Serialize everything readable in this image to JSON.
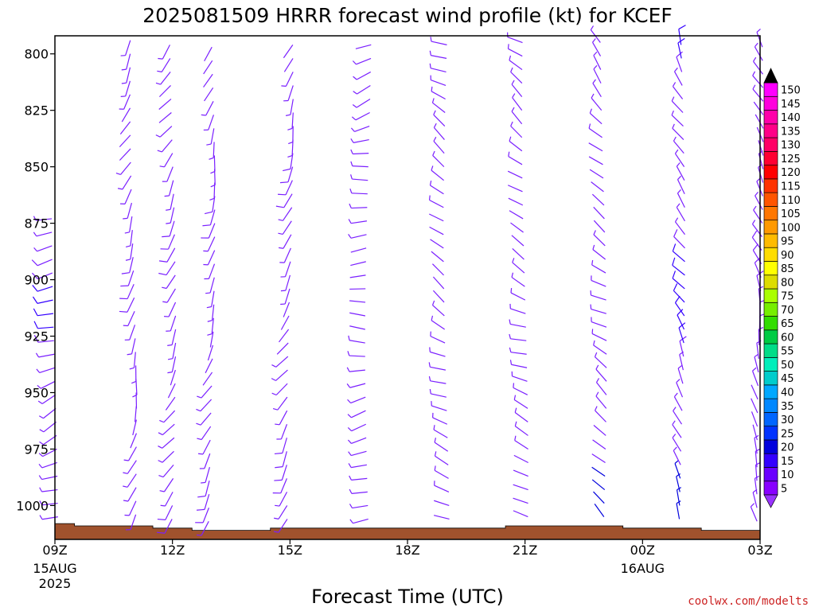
{
  "chart_data": {
    "type": "wind-barb-profile",
    "title": "2025081509 HRRR forecast wind profile (kt) for KCEF",
    "xlabel": "Forecast Time (UTC)",
    "credit": "coolwx.com/modelts",
    "y_axis": {
      "quantity": "pressure (hPa)",
      "range": [
        1015,
        792
      ],
      "ticks": [
        800,
        825,
        850,
        875,
        900,
        925,
        950,
        975,
        1000
      ]
    },
    "x_axis": {
      "start": "2025-08-15 09Z",
      "end": "2025-08-16 03Z",
      "range_hours": [
        0,
        18
      ],
      "ticks": [
        {
          "h": 0,
          "label": "09Z",
          "sub1": "15AUG",
          "sub2": "2025"
        },
        {
          "h": 3,
          "label": "12Z",
          "sub1": "",
          "sub2": ""
        },
        {
          "h": 6,
          "label": "15Z",
          "sub1": "",
          "sub2": ""
        },
        {
          "h": 9,
          "label": "18Z",
          "sub1": "",
          "sub2": ""
        },
        {
          "h": 12,
          "label": "21Z",
          "sub1": "",
          "sub2": ""
        },
        {
          "h": 15,
          "label": "00Z",
          "sub1": "16AUG",
          "sub2": ""
        },
        {
          "h": 18,
          "label": "03Z",
          "sub1": "",
          "sub2": ""
        }
      ]
    },
    "colorbar": {
      "levels": [
        5,
        10,
        15,
        20,
        25,
        30,
        35,
        40,
        45,
        50,
        55,
        60,
        65,
        70,
        75,
        80,
        85,
        90,
        95,
        100,
        105,
        110,
        115,
        120,
        125,
        130,
        135,
        140,
        145,
        150
      ],
      "colors": [
        "#8800ff",
        "#6a00ff",
        "#3300ff",
        "#0000dd",
        "#0033ff",
        "#0066ff",
        "#0088ff",
        "#00a8ff",
        "#00cccc",
        "#00eebb",
        "#00dd88",
        "#00cc44",
        "#33dd00",
        "#77ee00",
        "#aaff00",
        "#dddd00",
        "#ffff00",
        "#ffdd00",
        "#ffbb00",
        "#ff9900",
        "#ff7700",
        "#ff5500",
        "#ff3300",
        "#ff0000",
        "#ff0033",
        "#ff0066",
        "#ff0088",
        "#ff00aa",
        "#ff00dd",
        "#ff00ff"
      ]
    },
    "columns": [
      {
        "h": 0,
        "surface": 1008,
        "top": 870,
        "dir": 255,
        "spd": 8
      },
      {
        "h": 2,
        "surface": 1007,
        "top": 792,
        "dir": 200,
        "spd": 7
      },
      {
        "h": 3,
        "surface": 1009,
        "top": 792,
        "dir": 210,
        "spd": 7
      },
      {
        "h": 4,
        "surface": 1010,
        "top": 792,
        "dir": 200,
        "spd": 7
      },
      {
        "h": 6,
        "surface": 1009,
        "top": 792,
        "dir": 205,
        "spd": 7
      },
      {
        "h": 8,
        "surface": 1009,
        "top": 792,
        "dir": 260,
        "spd": 6
      },
      {
        "h": 10,
        "surface": 1009,
        "top": 792,
        "dir": 300,
        "spd": 6
      },
      {
        "h": 12,
        "surface": 1008,
        "top": 792,
        "dir": 300,
        "spd": 6
      },
      {
        "h": 14,
        "surface": 1008,
        "top": 792,
        "dir": 310,
        "spd": 6
      },
      {
        "h": 16,
        "surface": 1009,
        "top": 792,
        "dir": 330,
        "spd": 9
      },
      {
        "h": 18,
        "surface": 1010,
        "top": 792,
        "dir": 340,
        "spd": 7
      }
    ],
    "surface_profile": [
      {
        "h": 0,
        "p": 1008
      },
      {
        "h": 0.5,
        "p": 1008
      },
      {
        "h": 0.5,
        "p": 1009
      },
      {
        "h": 2.5,
        "p": 1009
      },
      {
        "h": 2.5,
        "p": 1010
      },
      {
        "h": 3.5,
        "p": 1010
      },
      {
        "h": 3.5,
        "p": 1011
      },
      {
        "h": 5.5,
        "p": 1011
      },
      {
        "h": 5.5,
        "p": 1010
      },
      {
        "h": 11.5,
        "p": 1010
      },
      {
        "h": 11.5,
        "p": 1009
      },
      {
        "h": 14.5,
        "p": 1009
      },
      {
        "h": 14.5,
        "p": 1010
      },
      {
        "h": 16.5,
        "p": 1010
      },
      {
        "h": 16.5,
        "p": 1011
      },
      {
        "h": 18,
        "p": 1011
      }
    ],
    "surface_color": "#a0522d",
    "barb_color": "#7a1fff",
    "grid": false,
    "legend": "colorbar-right"
  }
}
